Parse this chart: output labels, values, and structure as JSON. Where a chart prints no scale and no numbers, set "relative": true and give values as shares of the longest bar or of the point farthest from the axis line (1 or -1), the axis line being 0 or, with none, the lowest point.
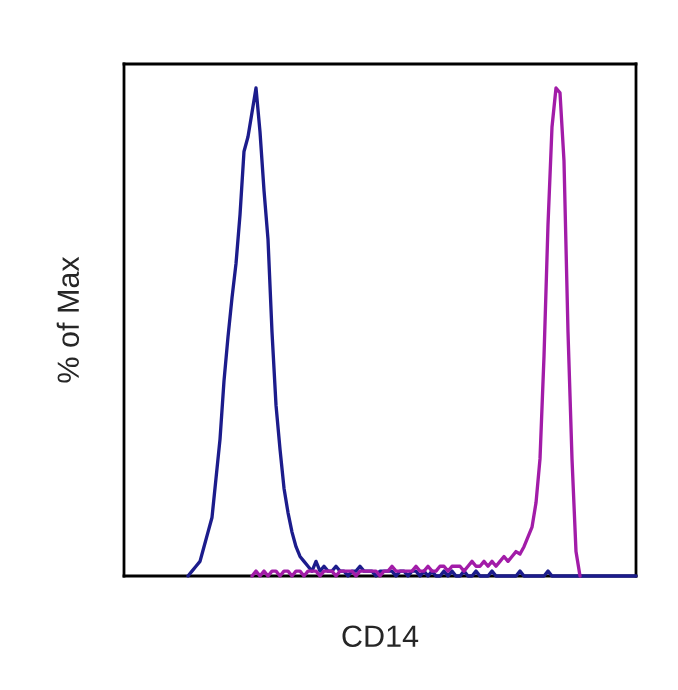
{
  "chart_data": {
    "type": "line",
    "xlabel": "CD14",
    "ylabel": "% of Max",
    "relative": true,
    "grid": false,
    "marker": "none",
    "line_style": "solid",
    "categories": [
      null,
      null,
      null,
      null,
      null,
      null,
      null,
      null,
      null,
      null,
      null,
      null,
      null,
      null,
      null,
      null,
      null,
      null,
      null,
      null,
      null,
      null,
      null,
      null,
      null,
      null,
      null,
      null,
      null,
      null,
      null,
      null,
      null,
      null,
      null,
      null,
      null,
      null,
      null,
      null,
      null,
      null,
      null,
      null,
      null,
      null,
      null,
      null,
      null,
      null,
      null,
      null,
      null,
      null,
      null,
      null,
      null,
      null,
      null,
      null,
      null,
      null,
      null,
      null,
      null,
      null,
      null,
      null,
      null,
      null,
      null,
      null,
      null,
      null,
      null,
      null,
      null,
      null,
      null,
      null,
      null,
      null,
      null,
      null,
      null,
      null,
      null,
      null,
      null,
      null,
      null,
      null,
      null,
      null,
      null,
      null,
      null,
      null,
      null,
      null,
      null,
      null,
      null,
      null,
      null,
      null,
      null,
      null,
      null,
      null,
      null,
      null,
      null,
      null,
      null,
      null,
      null,
      null,
      null,
      null,
      null,
      null,
      null,
      null,
      null,
      null,
      null,
      null,
      null
    ],
    "series": [
      {
        "color": "#1c1c8c",
        "values": [
          null,
          null,
          null,
          null,
          null,
          null,
          null,
          null,
          null,
          null,
          null,
          null,
          null,
          null,
          null,
          null,
          0,
          0.01,
          0.02,
          0.03,
          0.06,
          0.09,
          0.12,
          0.2,
          0.28,
          0.4,
          0.49,
          0.57,
          0.64,
          0.74,
          0.87,
          0.9,
          0.95,
          1.0,
          0.91,
          0.79,
          0.69,
          0.5,
          0.35,
          0.26,
          0.18,
          0.13,
          0.09,
          0.06,
          0.04,
          0.03,
          0.02,
          0.01,
          0.03,
          0.01,
          0.02,
          0.01,
          0.01,
          0.02,
          0.01,
          0.01,
          0.0,
          0.01,
          0.01,
          0.02,
          0.01,
          0.01,
          0.01,
          0.0,
          0.01,
          0.01,
          0.01,
          0.01,
          0.0,
          0.01,
          0.01,
          0.0,
          0.01,
          0.01,
          0.0,
          0.01,
          0.0,
          0.01,
          0.0,
          0.0,
          0.01,
          0.0,
          0.01,
          0.0,
          0.0,
          0.01,
          0.0,
          0.0,
          0.01,
          0.0,
          0.0,
          0.0,
          0.01,
          0.0,
          0.0,
          0.0,
          0.0,
          0.0,
          0.0,
          0.01,
          0.0,
          0.0,
          0.0,
          0.0,
          0.0,
          0.0,
          0.01,
          0.0,
          0.0,
          0.0,
          0.0,
          0.0,
          0.0,
          0.0,
          0.0,
          0.0,
          0.0,
          0.0,
          0.0,
          0.0,
          0.0,
          0.0,
          0.0,
          0.0,
          0.0,
          0.0,
          0.0,
          0.0,
          0.0
        ]
      },
      {
        "color": "#a21ca8",
        "values": [
          null,
          null,
          null,
          null,
          null,
          null,
          null,
          null,
          null,
          null,
          null,
          null,
          null,
          null,
          null,
          null,
          null,
          null,
          null,
          null,
          null,
          null,
          null,
          null,
          null,
          null,
          null,
          null,
          null,
          null,
          null,
          null,
          0.0,
          0.01,
          0.0,
          0.01,
          0.0,
          0.01,
          0.01,
          0.0,
          0.01,
          0.01,
          0.0,
          0.01,
          0.01,
          0.0,
          0.01,
          0.01,
          0.01,
          0.0,
          0.01,
          0.01,
          0.01,
          0.0,
          0.01,
          0.01,
          0.01,
          0.01,
          0.0,
          0.01,
          0.01,
          0.01,
          0.01,
          0.01,
          0.0,
          0.01,
          0.01,
          0.02,
          0.01,
          0.01,
          0.01,
          0.01,
          0.01,
          0.02,
          0.01,
          0.01,
          0.02,
          0.01,
          0.01,
          0.02,
          0.02,
          0.01,
          0.02,
          0.02,
          0.02,
          0.01,
          0.02,
          0.03,
          0.02,
          0.02,
          0.03,
          0.02,
          0.03,
          0.02,
          0.03,
          0.04,
          0.03,
          0.04,
          0.05,
          0.045,
          0.06,
          0.08,
          0.1,
          0.15,
          0.24,
          0.45,
          0.72,
          0.92,
          1.0,
          0.99,
          0.85,
          0.5,
          0.24,
          0.05,
          0.0,
          null,
          null,
          null,
          null,
          null,
          null,
          null,
          null,
          null,
          null,
          null,
          null,
          null,
          null
        ]
      }
    ]
  }
}
